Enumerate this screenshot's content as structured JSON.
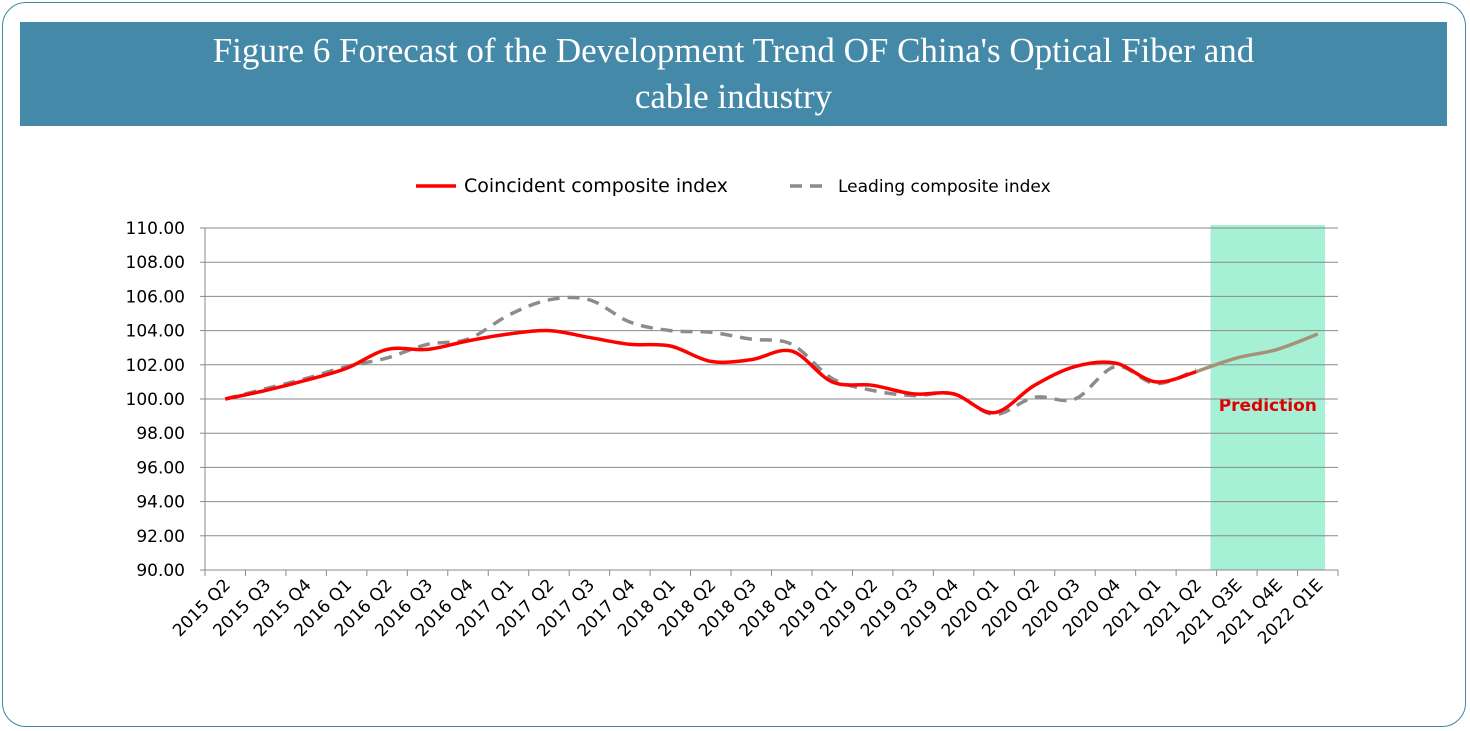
{
  "chart_data": {
    "type": "line",
    "title": "Figure 6 Forecast of the Development Trend OF China's Optical Fiber and cable industry",
    "categories": [
      "2015 Q2",
      "2015 Q3",
      "2015 Q4",
      "2016 Q1",
      "2016 Q2",
      "2016 Q3",
      "2016 Q4",
      "2017 Q1",
      "2017 Q2",
      "2017 Q3",
      "2017 Q4",
      "2018 Q1",
      "2018 Q2",
      "2018 Q3",
      "2018 Q4",
      "2019 Q1",
      "2019 Q2",
      "2019 Q3",
      "2019 Q4",
      "2020 Q1",
      "2020 Q2",
      "2020 Q3",
      "2020 Q4",
      "2021 Q1",
      "2021 Q2",
      "2021 Q3E",
      "2021 Q4E",
      "2022 Q1E"
    ],
    "series": [
      {
        "name": "Coincident composite index",
        "color": "#ff0000",
        "dash": false,
        "values": [
          100.0,
          100.5,
          101.1,
          101.8,
          102.9,
          102.9,
          103.4,
          103.8,
          104.0,
          103.6,
          103.2,
          103.1,
          102.2,
          102.3,
          102.8,
          101.0,
          100.8,
          100.3,
          100.3,
          99.2,
          100.8,
          101.9,
          102.1,
          101.0,
          101.6,
          102.4,
          102.9,
          103.8
        ]
      },
      {
        "name": "Leading composite index",
        "color": "#8c8c8c",
        "dash": true,
        "values": [
          100.0,
          100.6,
          101.2,
          101.9,
          102.4,
          103.2,
          103.5,
          104.9,
          105.8,
          105.8,
          104.5,
          104.0,
          103.9,
          103.5,
          103.2,
          101.2,
          100.5,
          100.2,
          100.3,
          99.1,
          100.1,
          100.0,
          101.9,
          100.9,
          101.7,
          null,
          null,
          null
        ]
      }
    ],
    "forecast": {
      "from": "2021 Q3E",
      "to": "2022 Q1E",
      "label": "Prediction",
      "color": "#a6f0d6",
      "line_color": "#a59279",
      "label_color": "#e00000"
    },
    "ylim": [
      90,
      110
    ],
    "yticks": [
      {
        "value": 90,
        "label": "90.00"
      },
      {
        "value": 92,
        "label": "92.00"
      },
      {
        "value": 94,
        "label": "94.00"
      },
      {
        "value": 96,
        "label": "96.00"
      },
      {
        "value": 98,
        "label": "98.00"
      },
      {
        "value": 100,
        "label": "100.00"
      },
      {
        "value": 102,
        "label": "102.00"
      },
      {
        "value": 104,
        "label": "104.00"
      },
      {
        "value": 106,
        "label": "106.00"
      },
      {
        "value": 108,
        "label": "108.00"
      },
      {
        "value": 110,
        "label": "110.00"
      }
    ],
    "grid": true,
    "legend": "top"
  }
}
